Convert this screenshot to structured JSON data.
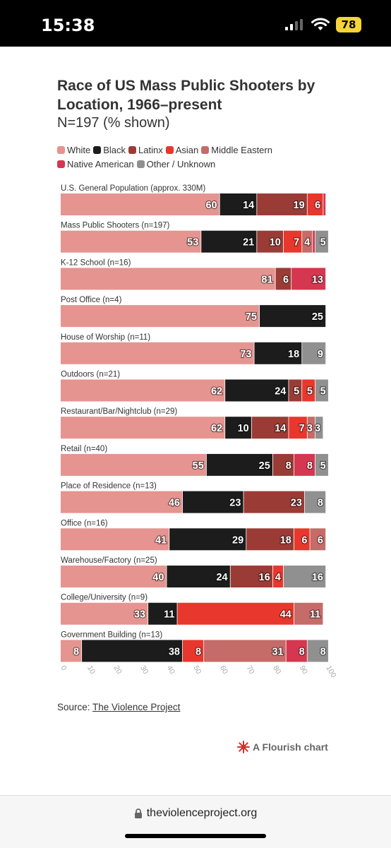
{
  "status_bar": {
    "time": "15:38",
    "battery": "78"
  },
  "chart_data": {
    "type": "bar",
    "orientation": "horizontal",
    "stacked": true,
    "title": "Race of US Mass Public Shooters by Location, 1966–present",
    "subtitle": "N=197 (% shown)",
    "xlim": [
      0,
      100
    ],
    "x_ticks": [
      "0",
      "10",
      "20",
      "30",
      "40",
      "50",
      "60",
      "70",
      "80",
      "90",
      "100"
    ],
    "legend_placement": "top",
    "series": [
      {
        "name": "White",
        "color": "#e59490"
      },
      {
        "name": "Black",
        "color": "#1c1c1c"
      },
      {
        "name": "Latinx",
        "color": "#9b3b35"
      },
      {
        "name": "Asian",
        "color": "#e8372c"
      },
      {
        "name": "Middle Eastern",
        "color": "#c56b68"
      },
      {
        "name": "Native American",
        "color": "#d4374f"
      },
      {
        "name": "Other / Unknown",
        "color": "#909090"
      }
    ],
    "categories": [
      {
        "label": "U.S. General Population (approx. 330M)",
        "values": [
          60,
          14,
          19,
          6,
          0,
          1,
          0
        ]
      },
      {
        "label": "Mass Public Shooters (n=197)",
        "values": [
          53,
          21,
          10,
          7,
          4,
          1,
          5
        ]
      },
      {
        "label": "K-12 School (n=16)",
        "values": [
          81,
          0,
          6,
          0,
          0,
          13,
          0
        ]
      },
      {
        "label": "Post Office (n=4)",
        "values": [
          75,
          25,
          0,
          0,
          0,
          0,
          0
        ]
      },
      {
        "label": "House of Worship (n=11)",
        "values": [
          73,
          18,
          0,
          0,
          0,
          0,
          9
        ]
      },
      {
        "label": "Outdoors (n=21)",
        "values": [
          62,
          24,
          5,
          5,
          0,
          0,
          5
        ]
      },
      {
        "label": "Restaurant/Bar/Nightclub (n=29)",
        "values": [
          62,
          10,
          14,
          7,
          3,
          0,
          3
        ]
      },
      {
        "label": "Retail (n=40)",
        "values": [
          55,
          25,
          8,
          0,
          0,
          8,
          5
        ]
      },
      {
        "label": "Place of Residence (n=13)",
        "values": [
          46,
          23,
          23,
          0,
          0,
          0,
          8
        ]
      },
      {
        "label": "Office (n=16)",
        "values": [
          41,
          29,
          18,
          6,
          6,
          0,
          0
        ]
      },
      {
        "label": "Warehouse/Factory (n=25)",
        "values": [
          40,
          24,
          16,
          4,
          0,
          0,
          16
        ]
      },
      {
        "label": "College/University (n=9)",
        "values": [
          33,
          11,
          0,
          44,
          11,
          0,
          0
        ]
      },
      {
        "label": "Government Building (n=13)",
        "values": [
          8,
          38,
          0,
          8,
          31,
          8,
          8
        ]
      }
    ]
  },
  "source": {
    "prefix": "Source: ",
    "link": "The Violence Project"
  },
  "credit": "A Flourish chart",
  "browser": {
    "url": "theviolenceproject.org"
  }
}
